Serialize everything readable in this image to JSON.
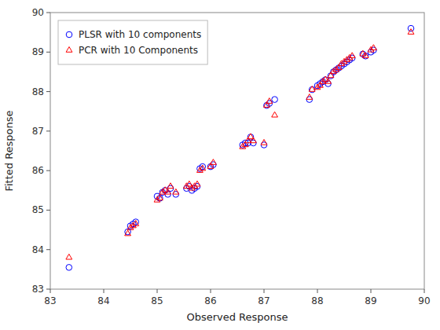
{
  "chart_data": {
    "type": "scatter",
    "x_label": "Observed Response",
    "y_label": "Fitted Response",
    "xlim": [
      83,
      90
    ],
    "ylim": [
      83,
      90
    ],
    "xticks": [
      83,
      84,
      85,
      86,
      87,
      88,
      89,
      90
    ],
    "yticks": [
      83,
      84,
      85,
      86,
      87,
      88,
      89,
      90
    ],
    "grid": false,
    "legend": "upper left",
    "series": [
      {
        "name": "PLSR with 10 components",
        "color": "#0000ff",
        "marker": "circle",
        "x": [
          83.35,
          84.45,
          84.5,
          84.55,
          84.6,
          85.0,
          85.05,
          85.1,
          85.15,
          85.2,
          85.25,
          85.35,
          85.55,
          85.6,
          85.65,
          85.7,
          85.75,
          85.8,
          85.85,
          86.0,
          86.05,
          86.6,
          86.65,
          86.7,
          86.75,
          86.8,
          87.0,
          87.05,
          87.1,
          87.2,
          87.85,
          87.9,
          88.0,
          88.05,
          88.1,
          88.15,
          88.2,
          88.25,
          88.3,
          88.35,
          88.4,
          88.45,
          88.5,
          88.55,
          88.6,
          88.65,
          88.85,
          88.9,
          89.0,
          89.05,
          89.75
        ],
        "values": [
          83.55,
          84.45,
          84.6,
          84.65,
          84.7,
          85.35,
          85.3,
          85.45,
          85.5,
          85.4,
          85.55,
          85.4,
          85.55,
          85.6,
          85.5,
          85.55,
          85.6,
          86.05,
          86.1,
          86.1,
          86.15,
          86.65,
          86.7,
          86.7,
          86.85,
          86.7,
          86.65,
          87.65,
          87.7,
          87.8,
          87.8,
          88.05,
          88.15,
          88.2,
          88.25,
          88.3,
          88.2,
          88.4,
          88.5,
          88.55,
          88.6,
          88.65,
          88.7,
          88.75,
          88.8,
          88.85,
          88.95,
          88.9,
          89.0,
          89.05,
          89.6
        ]
      },
      {
        "name": "PCR with 10 Components",
        "color": "#ff0000",
        "marker": "triangle",
        "x": [
          83.35,
          84.45,
          84.5,
          84.55,
          84.6,
          85.0,
          85.05,
          85.1,
          85.15,
          85.2,
          85.25,
          85.35,
          85.55,
          85.6,
          85.65,
          85.7,
          85.75,
          85.8,
          85.85,
          86.0,
          86.05,
          86.6,
          86.65,
          86.7,
          86.75,
          86.8,
          87.0,
          87.05,
          87.1,
          87.2,
          87.85,
          87.9,
          88.0,
          88.05,
          88.1,
          88.15,
          88.2,
          88.25,
          88.3,
          88.35,
          88.4,
          88.45,
          88.5,
          88.55,
          88.6,
          88.65,
          88.85,
          88.9,
          89.0,
          89.05,
          89.75
        ],
        "values": [
          83.8,
          84.4,
          84.55,
          84.6,
          84.65,
          85.25,
          85.3,
          85.45,
          85.5,
          85.45,
          85.6,
          85.45,
          85.6,
          85.65,
          85.55,
          85.6,
          85.65,
          86.0,
          86.05,
          86.1,
          86.2,
          86.6,
          86.65,
          86.75,
          86.85,
          86.75,
          86.7,
          87.65,
          87.75,
          87.4,
          87.85,
          88.05,
          88.1,
          88.15,
          88.25,
          88.3,
          88.25,
          88.4,
          88.5,
          88.55,
          88.6,
          88.7,
          88.75,
          88.8,
          88.85,
          88.9,
          88.95,
          88.9,
          89.05,
          89.1,
          89.5
        ]
      }
    ]
  }
}
